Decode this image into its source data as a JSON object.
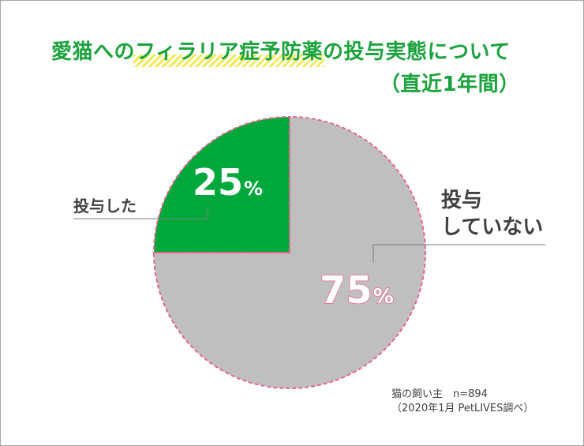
{
  "title": {
    "line1_pre": "愛猫への",
    "line1_highlight": "フィラリア症予防薬",
    "line1_post": "の投与実態について",
    "line2": "（直近1年間）"
  },
  "chart_data": {
    "type": "pie",
    "title": "愛猫へのフィラリア症予防薬の投与実態について（直近1年間）",
    "labels": [
      "投与した",
      "投与していない"
    ],
    "values": [
      25,
      75
    ],
    "unit": "%",
    "colors": [
      "#00a83c",
      "#bfbfbf"
    ],
    "edge_color": "#e6668f",
    "slices": [
      {
        "label": "投与した",
        "value": 25,
        "value_text": "25",
        "unit": "%",
        "color": "#00a83c"
      },
      {
        "label_lines": [
          "投与",
          "していない"
        ],
        "value": 75,
        "value_text": "75",
        "unit": "%",
        "color": "#bfbfbf"
      }
    ]
  },
  "source": {
    "line1": "猫の飼い主　n=894",
    "line2": "（2020年1月 PetLIVES調べ）"
  }
}
